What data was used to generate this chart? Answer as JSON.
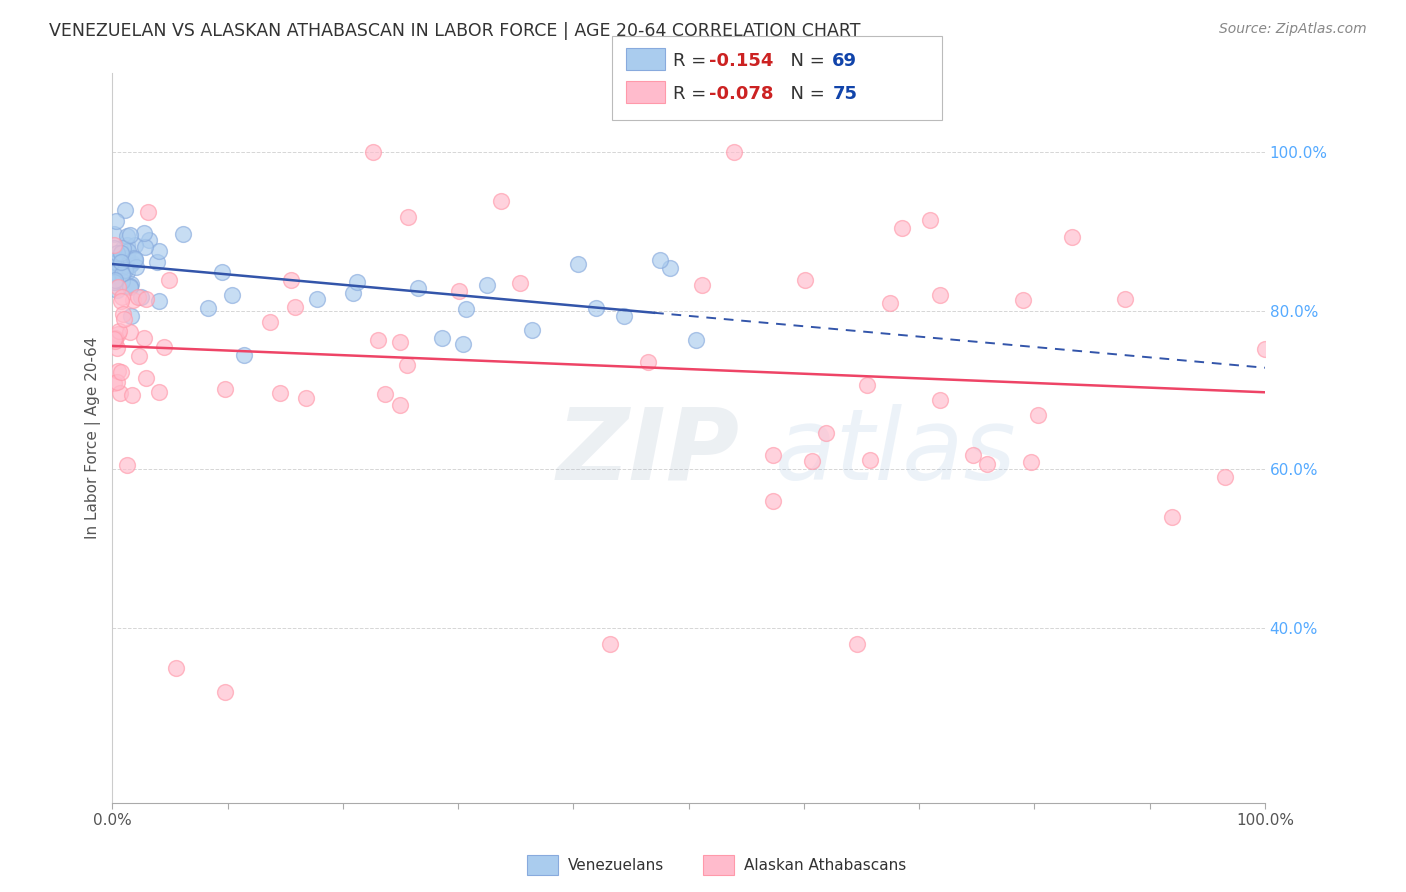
{
  "title": "VENEZUELAN VS ALASKAN ATHABASCAN IN LABOR FORCE | AGE 20-64 CORRELATION CHART",
  "source": "Source: ZipAtlas.com",
  "ylabel": "In Labor Force | Age 20-64",
  "watermark": "ZIPatlas",
  "legend_blue_r": "-0.154",
  "legend_blue_n": "69",
  "legend_pink_r": "-0.078",
  "legend_pink_n": "75",
  "legend_labels": [
    "Venezuelans",
    "Alaskan Athabascans"
  ],
  "blue_color": "#88AADD",
  "pink_color": "#FF99AA",
  "blue_face_color": "#AACCEE",
  "pink_face_color": "#FFBBCC",
  "blue_line_color": "#3355AA",
  "pink_line_color": "#EE4466",
  "background_color": "#FFFFFF",
  "grid_color": "#CCCCCC",
  "right_axis_color": "#55AAFF",
  "title_color": "#333333",
  "source_color": "#888888"
}
